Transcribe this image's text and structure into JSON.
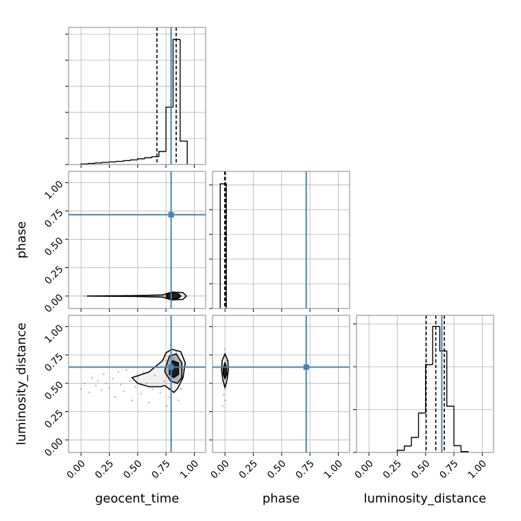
{
  "chart_data": {
    "type": "corner",
    "labels": [
      "geocent_time",
      "phase",
      "luminosity_distance"
    ],
    "lim": [
      -0.11,
      1.1
    ],
    "ticks": [
      {
        "value": 0,
        "label": "0.00"
      },
      {
        "value": 0.25,
        "label": "0.25"
      },
      {
        "value": 0.5,
        "label": "0.50"
      },
      {
        "value": 0.75,
        "label": "0.75"
      },
      {
        "value": 1,
        "label": "1.00"
      }
    ],
    "grid": true,
    "truth_color": "#4682b4",
    "hist_color": "#000000",
    "point_color": "#808080",
    "truths": [
      0.795,
      0.717,
      0.643
    ],
    "quantiles": [
      [
        0.67,
        0.795,
        0.84
      ],
      [
        -0.002,
        0.0,
        0.003
      ],
      [
        0.505,
        0.59,
        0.665
      ]
    ],
    "histograms": [
      {
        "bins": [
          0,
          0.0625,
          0.125,
          0.1875,
          0.25,
          0.3125,
          0.375,
          0.4375,
          0.5,
          0.5625,
          0.625,
          0.6875,
          0.75,
          0.8125,
          0.875,
          0.9375
        ],
        "counts": [
          0.02,
          0.04,
          0.06,
          0.08,
          0.1,
          0.12,
          0.15,
          0.18,
          0.22,
          0.26,
          0.3,
          0.5,
          2.2,
          4.8,
          0.9
        ],
        "ylim": [
          0,
          5.26
        ],
        "yticks": [
          0,
          1,
          2,
          3,
          4,
          5
        ]
      },
      {
        "bins": [
          -0.042,
          0.012
        ],
        "counts": [
          5.05
        ],
        "ylim": [
          0,
          5.55
        ],
        "yticks": [
          0,
          1,
          2,
          3,
          4,
          5
        ]
      },
      {
        "bins": [
          0.25,
          0.3125,
          0.375,
          0.4375,
          0.5,
          0.5625,
          0.625,
          0.6875,
          0.75,
          0.8125,
          0.875
        ],
        "counts": [
          0.05,
          0.15,
          0.35,
          0.92,
          2.05,
          2.94,
          2.37,
          1.08,
          0.16,
          0.02
        ],
        "ylim": [
          0,
          3.2
        ],
        "yticks": [
          0,
          1,
          2,
          3
        ]
      }
    ],
    "pairs": [
      {
        "points": {
          "x": [
            0.03,
            0.08,
            0.12,
            0.17,
            0.22,
            0.27,
            0.31,
            0.36,
            0.4,
            0.45,
            0.5,
            0.55,
            0.6,
            0.64,
            0.68,
            0.72,
            0.76,
            0.8,
            0.84,
            0.88
          ],
          "y": [
            0,
            0.002,
            -0.002,
            0,
            0.003,
            0,
            -0.003,
            0,
            0.002,
            0,
            -0.002,
            0,
            0.003,
            0,
            -0.003,
            0,
            0.002,
            0,
            -0.002,
            0
          ]
        },
        "contours": [
          {
            "x": [
              0.05,
              0.5,
              0.72,
              0.8,
              0.9,
              0.93,
              0.9,
              0.8,
              0.72,
              0.5,
              0.05
            ],
            "y": [
              0,
              0.004,
              0.01,
              0.035,
              0.03,
              0,
              -0.03,
              -0.035,
              -0.01,
              -0.004,
              0
            ]
          },
          {
            "x": [
              0.76,
              0.8,
              0.86,
              0.88,
              0.86,
              0.8,
              0.76,
              0.75
            ],
            "y": [
              0.015,
              0.025,
              0.02,
              0,
              -0.02,
              -0.025,
              -0.015,
              0
            ]
          }
        ]
      },
      {
        "points": {
          "x": [
            0.0,
            0.03,
            0.07,
            0.1,
            0.13,
            0.15,
            0.18,
            0.2,
            0.22,
            0.25,
            0.28,
            0.3,
            0.33,
            0.35,
            0.38,
            0.4,
            0.43,
            0.45,
            0.48,
            0.5,
            0.53,
            0.55,
            0.58,
            0.6,
            0.63,
            0.65,
            0.68,
            0.7,
            0.73,
            0.75,
            0.78,
            0.8,
            0.82,
            0.85,
            0.88,
            0.9,
            0.76,
            0.84,
            0.86,
            0.79
          ],
          "y": [
            0.45,
            0.5,
            0.42,
            0.55,
            0.48,
            0.52,
            0.44,
            0.58,
            0.5,
            0.46,
            0.54,
            0.38,
            0.6,
            0.49,
            0.43,
            0.62,
            0.52,
            0.35,
            0.47,
            0.56,
            0.41,
            0.6,
            0.5,
            0.33,
            0.45,
            0.57,
            0.64,
            0.42,
            0.52,
            0.7,
            0.38,
            0.8,
            0.72,
            0.5,
            0.45,
            0.62,
            0.3,
            0.78,
            0.35,
            0.84
          ]
        },
        "contours": [
          {
            "x": [
              0.45,
              0.6,
              0.72,
              0.75,
              0.8,
              0.88,
              0.92,
              0.9,
              0.85,
              0.82,
              0.78,
              0.74,
              0.7,
              0.6,
              0.5,
              0.45
            ],
            "y": [
              0.55,
              0.6,
              0.7,
              0.77,
              0.8,
              0.78,
              0.68,
              0.55,
              0.45,
              0.42,
              0.45,
              0.48,
              0.47,
              0.47,
              0.5,
              0.55
            ]
          },
          {
            "x": [
              0.74,
              0.78,
              0.84,
              0.89,
              0.89,
              0.85,
              0.79,
              0.74
            ],
            "y": [
              0.62,
              0.74,
              0.76,
              0.68,
              0.55,
              0.5,
              0.52,
              0.6
            ]
          },
          {
            "x": [
              0.78,
              0.81,
              0.86,
              0.86,
              0.82,
              0.78
            ],
            "y": [
              0.62,
              0.7,
              0.68,
              0.58,
              0.55,
              0.58
            ]
          }
        ]
      },
      {
        "points": {
          "x": [
            -0.02,
            -0.01,
            0,
            0.01,
            0.02,
            -0.015,
            0.005,
            0.015,
            -0.005,
            0,
            0.01,
            -0.01,
            0,
            0.005,
            -0.02
          ],
          "y": [
            0.3,
            0.4,
            0.45,
            0.5,
            0.55,
            0.6,
            0.65,
            0.7,
            0.75,
            0.8,
            0.58,
            0.62,
            0.35,
            0.68,
            0.52
          ]
        },
        "contours": [
          {
            "x": [
              0,
              0.025,
              0.03,
              0.02,
              0,
              -0.02,
              -0.03,
              -0.025
            ],
            "y": [
              0.76,
              0.7,
              0.62,
              0.54,
              0.46,
              0.54,
              0.62,
              0.7
            ]
          },
          {
            "x": [
              0,
              0.015,
              0.015,
              0,
              -0.015,
              -0.015
            ],
            "y": [
              0.68,
              0.64,
              0.58,
              0.54,
              0.58,
              0.64
            ]
          }
        ]
      }
    ]
  }
}
